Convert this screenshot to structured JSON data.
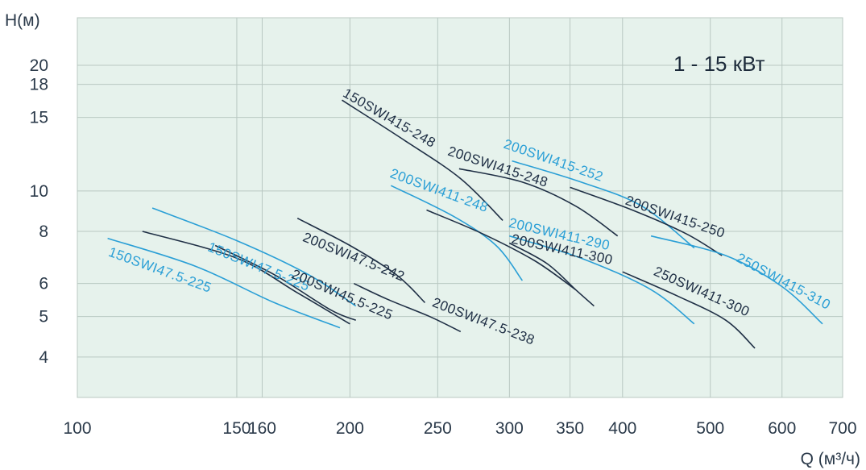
{
  "chart_data": {
    "type": "line",
    "title": "",
    "annotation": "1 - 15 кВт",
    "ylabel": "H(м)",
    "xlabel": "Q (м³/ч)",
    "x_scale": "log",
    "y_scale": "log",
    "xlim": [
      100,
      700
    ],
    "ylim": [
      3.2,
      26
    ],
    "x_ticks": [
      100,
      150,
      160,
      200,
      250,
      300,
      350,
      400,
      500,
      600,
      700
    ],
    "y_ticks": [
      4,
      5,
      6,
      8,
      10,
      15,
      18,
      20
    ],
    "grid": true,
    "colors": {
      "background": "#e6f2ec",
      "grid": "#b9c8c2",
      "dark": "#1f2f45",
      "light": "#2a9fd6"
    },
    "series": [
      {
        "name": "150SWI47.5-225",
        "color": "light",
        "points": [
          [
            108,
            7.7
          ],
          [
            135,
            6.6
          ],
          [
            165,
            5.4
          ],
          [
            195,
            4.7
          ]
        ]
      },
      {
        "name": "150SWI47.5-225",
        "color": "dark",
        "points": [
          [
            118,
            8.0
          ],
          [
            150,
            6.9
          ],
          [
            175,
            5.7
          ],
          [
            200,
            4.8
          ]
        ]
      },
      {
        "name": "150SWI47.5-225",
        "color": "light",
        "points": [
          [
            121,
            9.1
          ],
          [
            150,
            7.6
          ],
          [
            180,
            6.3
          ],
          [
            203,
            5.3
          ]
        ]
      },
      {
        "name": "200SWI45.5-225",
        "color": "dark",
        "points": [
          [
            142,
            7.4
          ],
          [
            165,
            6.3
          ],
          [
            190,
            5.2
          ],
          [
            203,
            4.9
          ]
        ]
      },
      {
        "name": "200SWI47.5-242",
        "color": "dark",
        "points": [
          [
            175,
            8.6
          ],
          [
            200,
            7.4
          ],
          [
            225,
            6.3
          ],
          [
            242,
            5.4
          ]
        ]
      },
      {
        "name": "200SWI47.5-238",
        "color": "dark",
        "points": [
          [
            202,
            6.0
          ],
          [
            220,
            5.5
          ],
          [
            245,
            5.0
          ],
          [
            265,
            4.6
          ]
        ]
      },
      {
        "name": "150SWI415-248",
        "color": "dark",
        "points": [
          [
            196,
            16.5
          ],
          [
            230,
            13.2
          ],
          [
            265,
            10.7
          ],
          [
            295,
            8.5
          ]
        ]
      },
      {
        "name": "200SWI411-248",
        "color": "light",
        "points": [
          [
            222,
            10.3
          ],
          [
            260,
            8.7
          ],
          [
            290,
            7.4
          ],
          [
            310,
            6.1
          ]
        ]
      },
      {
        "name": "200SWI411-248",
        "color": "dark",
        "points": [
          [
            243,
            9.0
          ],
          [
            280,
            7.9
          ],
          [
            320,
            6.8
          ],
          [
            355,
            5.8
          ]
        ]
      },
      {
        "name": "200SWI415-248",
        "color": "dark",
        "points": [
          [
            264,
            11.3
          ],
          [
            310,
            10.5
          ],
          [
            355,
            9.2
          ],
          [
            395,
            7.8
          ]
        ]
      },
      {
        "name": "200SWI411-290",
        "color": "light",
        "points": [
          [
            300,
            7.8
          ],
          [
            360,
            6.9
          ],
          [
            430,
            5.8
          ],
          [
            480,
            4.8
          ]
        ]
      },
      {
        "name": "200SWI411-300",
        "color": "dark",
        "points": [
          [
            300,
            7.5
          ],
          [
            330,
            6.7
          ],
          [
            355,
            5.8
          ],
          [
            372,
            5.3
          ]
        ]
      },
      {
        "name": "200SWI415-252",
        "color": "light",
        "points": [
          [
            302,
            11.8
          ],
          [
            360,
            10.5
          ],
          [
            420,
            9.2
          ],
          [
            480,
            7.3
          ]
        ]
      },
      {
        "name": "200SWI415-250",
        "color": "dark",
        "points": [
          [
            350,
            10.2
          ],
          [
            410,
            9.0
          ],
          [
            470,
            7.9
          ],
          [
            515,
            7.0
          ]
        ]
      },
      {
        "name": "250SWI411-300",
        "color": "dark",
        "points": [
          [
            400,
            6.4
          ],
          [
            460,
            5.6
          ],
          [
            520,
            4.9
          ],
          [
            560,
            4.2
          ]
        ]
      },
      {
        "name": "250SWI415-310",
        "color": "light",
        "points": [
          [
            430,
            7.8
          ],
          [
            520,
            7.0
          ],
          [
            600,
            5.9
          ],
          [
            665,
            4.8
          ]
        ]
      }
    ],
    "labels": [
      {
        "text": "150SWI47.5-225",
        "color": "light",
        "at": [
          108,
          7.0
        ],
        "angle": 20
      },
      {
        "text": "150SWI47.5-225",
        "color": "light",
        "at": [
          139,
          7.2
        ],
        "angle": 22
      },
      {
        "text": "200SWI45.5-225",
        "color": "dark",
        "at": [
          172,
          6.2
        ],
        "angle": 23
      },
      {
        "text": "200SWI47.5-242",
        "color": "dark",
        "at": [
          177,
          7.6
        ],
        "angle": 22
      },
      {
        "text": "200SWI47.5-238",
        "color": "dark",
        "at": [
          246,
          5.3
        ],
        "angle": 21
      },
      {
        "text": "150SWI415-248",
        "color": "dark",
        "at": [
          196,
          16.9
        ],
        "angle": 30
      },
      {
        "text": "200SWI411-248",
        "color": "light",
        "at": [
          221,
          10.8
        ],
        "angle": 20
      },
      {
        "text": "200SWI415-248",
        "color": "dark",
        "at": [
          256,
          12.2
        ],
        "angle": 18
      },
      {
        "text": "200SWI415-252",
        "color": "light",
        "at": [
          295,
          12.7
        ],
        "angle": 19
      },
      {
        "text": "200SWI415-250",
        "color": "dark",
        "at": [
          402,
          9.3
        ],
        "angle": 19
      },
      {
        "text": "200SWI411-290",
        "color": "light",
        "at": [
          299,
          8.2
        ],
        "angle": 13
      },
      {
        "text": "200SWI411-300",
        "color": "dark",
        "at": [
          301,
          7.5
        ],
        "angle": 12
      },
      {
        "text": "250SWI411-300",
        "color": "dark",
        "at": [
          432,
          6.3
        ],
        "angle": 24
      },
      {
        "text": "250SWI415-310",
        "color": "light",
        "at": [
          533,
          6.8
        ],
        "angle": 28
      }
    ]
  }
}
